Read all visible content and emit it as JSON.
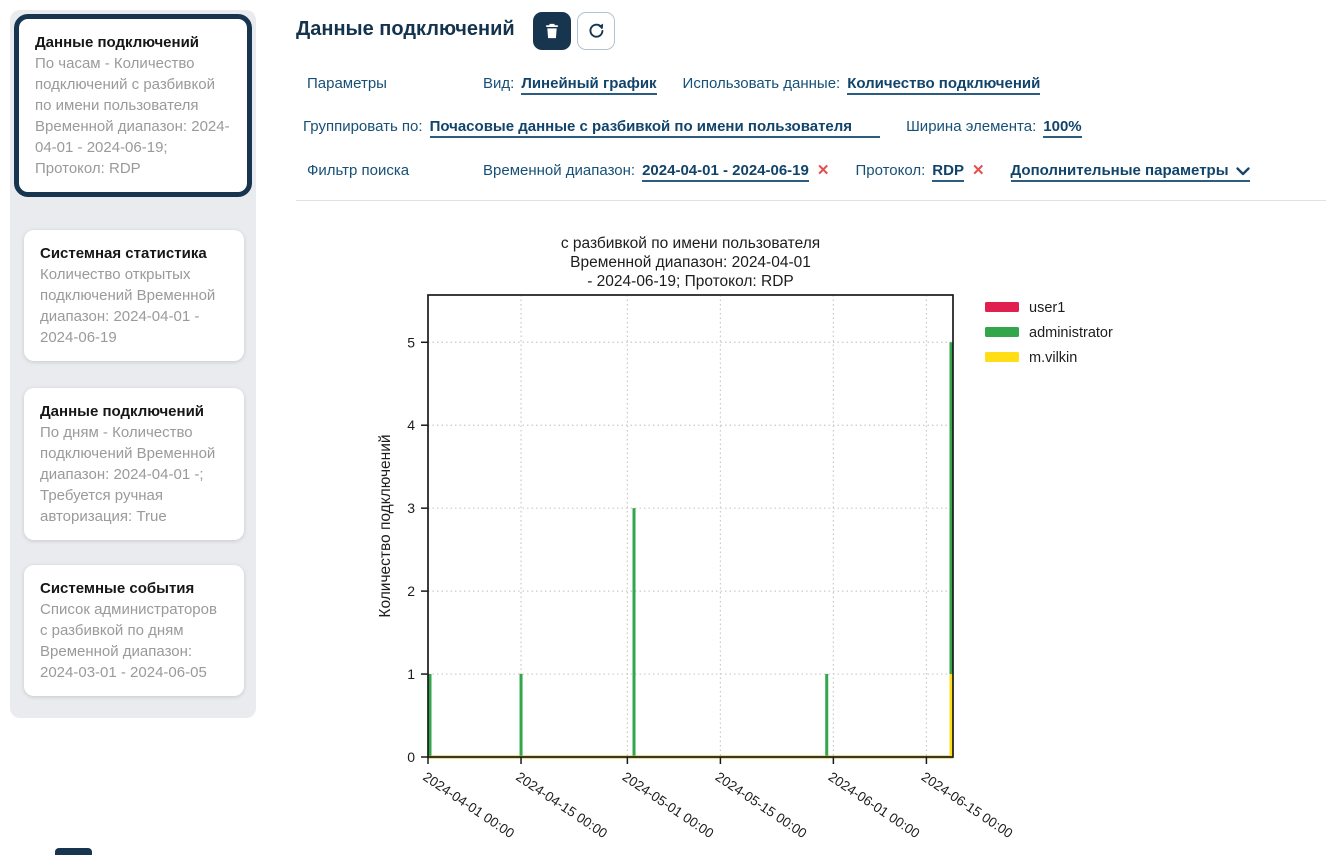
{
  "header": {
    "title": "Данные подключений"
  },
  "icons": {
    "close": "✕"
  },
  "sidebar": {
    "items": [
      {
        "title": "Данные подключений",
        "description": "По часам - Количество подключений с разбивкой по имени пользователя Временной диапазон: 2024-04-01 - 2024-06-19; Протокол: RDP",
        "selected": true
      },
      {
        "title": "Системная статистика",
        "description": "Количество открытых подключений Временной диапазон: 2024-04-01 - 2024-06-19",
        "selected": false
      },
      {
        "title": "Данные подключений",
        "description": "По дням - Количество подключений Временной диапазон: 2024-04-01 -; Требуется ручная авторизация: True",
        "selected": false
      },
      {
        "title": "Системные события",
        "description": "Список администраторов с разбивкой по дням Временной диапазон: 2024-03-01 - 2024-06-05",
        "selected": false
      }
    ]
  },
  "params": {
    "section_label": "Параметры",
    "view_label": "Вид:",
    "view_value": "Линейный график",
    "use_data_label": "Использовать данные:",
    "use_data_value": "Количество подключений",
    "group_by_label": "Группировать по:",
    "group_by_value": "Почасовые данные с разбивкой по имени пользователя",
    "width_label": "Ширина элемента:",
    "width_value": "100%"
  },
  "filter": {
    "section_label": "Фильтр поиска",
    "time_range_label": "Временной диапазон:",
    "time_range_value": "2024-04-01 - 2024-06-19",
    "protocol_label": "Протокол:",
    "protocol_value": "RDP",
    "extra_label": "Дополнительные параметры"
  },
  "chart_data": {
    "type": "line",
    "title_lines": [
      "с разбивкой по имени пользователя",
      "Временной диапазон: 2024-04-01",
      "- 2024-06-19; Протокол: RDP"
    ],
    "ylabel": "Количество подключений",
    "xlim": [
      "2024-04-01",
      "2024-06-19"
    ],
    "ylim": [
      0,
      5.57
    ],
    "yticks": [
      0,
      1,
      2,
      3,
      4,
      5
    ],
    "xticks": [
      {
        "value": "2024-04-01",
        "label": "2024-04-01 00:00"
      },
      {
        "value": "2024-04-15",
        "label": "2024-04-15 00:00"
      },
      {
        "value": "2024-05-01",
        "label": "2024-05-01 00:00"
      },
      {
        "value": "2024-05-15",
        "label": "2024-05-15 00:00"
      },
      {
        "value": "2024-06-01",
        "label": "2024-06-01 00:00"
      },
      {
        "value": "2024-06-15",
        "label": "2024-06-15 00:00"
      }
    ],
    "grid": true,
    "legend_position": "right-outside",
    "baseline": 0,
    "series": [
      {
        "name": "user1",
        "color": "#e0214f",
        "spikes": []
      },
      {
        "name": "administrator",
        "color": "#33a64c",
        "spikes": [
          {
            "x": "2024-04-01",
            "y": 1
          },
          {
            "x": "2024-04-15",
            "y": 1
          },
          {
            "x": "2024-05-02",
            "y": 3
          },
          {
            "x": "2024-05-31",
            "y": 1
          },
          {
            "x": "2024-06-19",
            "y": 5
          }
        ]
      },
      {
        "name": "m.vilkin",
        "color": "#ffdd17",
        "spikes": [
          {
            "x": "2024-06-19",
            "y": 1
          }
        ]
      }
    ],
    "colors": {
      "grid": "#c9c9c9",
      "frame": "#1a1a1a",
      "text": "#1d1d1d"
    }
  }
}
